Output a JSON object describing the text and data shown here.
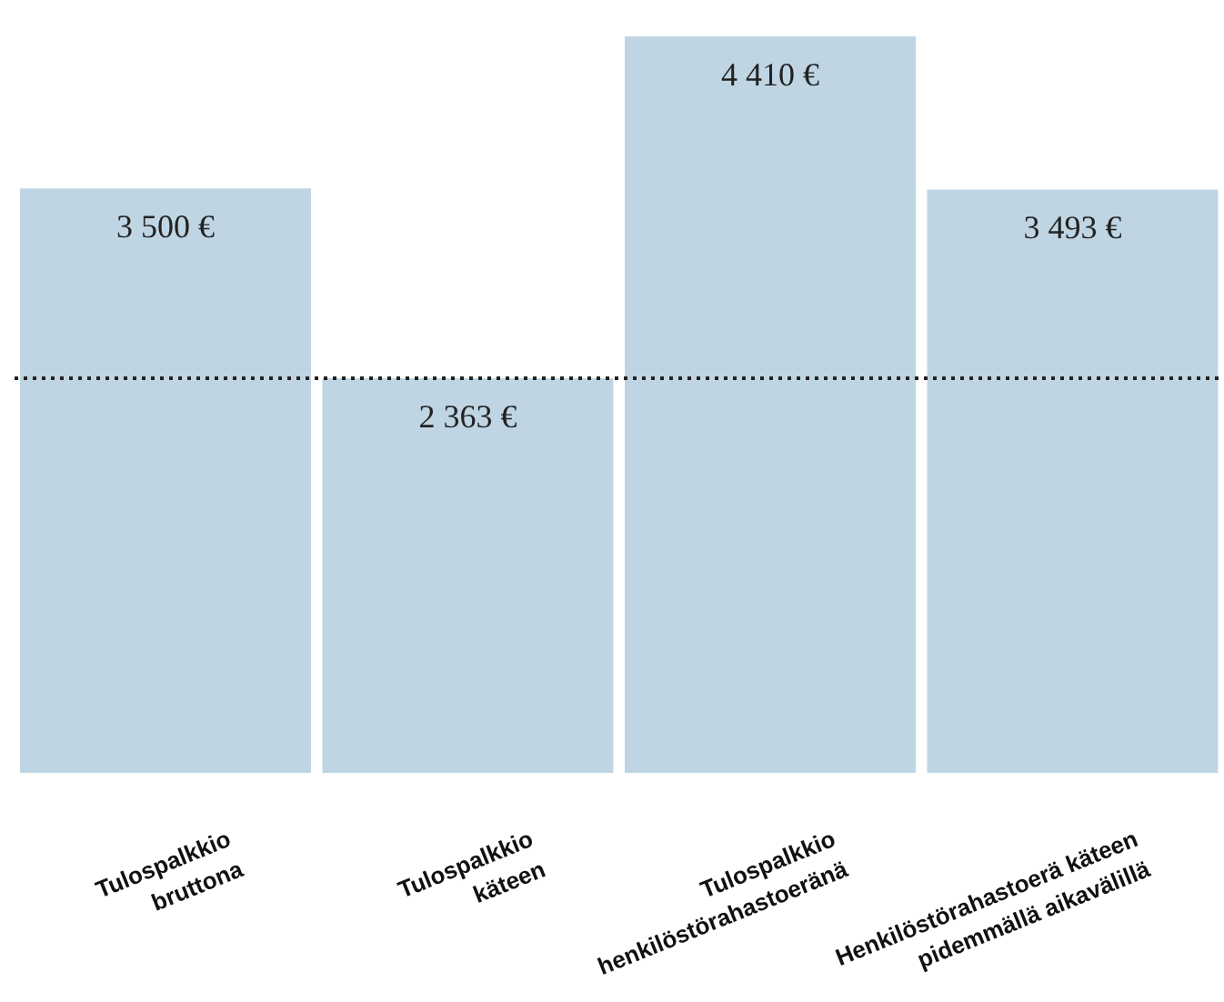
{
  "chart_data": {
    "type": "bar",
    "categories": [
      "Tulospalkkio\nbruttona",
      "Tulospalkkio\nkäteen",
      "Tulospalkkio\nhenkilöstörahastoeränä",
      "Henkilöstörahastoerä käteen\npidemmällä aikavälillä"
    ],
    "values": [
      3500,
      2363,
      4410,
      3493
    ],
    "color": "#bfd5e3",
    "value_labels": [
      "3 500 €",
      "2 363 €",
      "4 410 €",
      "3 493 €"
    ],
    "ref_lines": [
      {
        "axis": "y",
        "value": 2363,
        "color": "#222222",
        "line_style": "dotted"
      }
    ]
  }
}
